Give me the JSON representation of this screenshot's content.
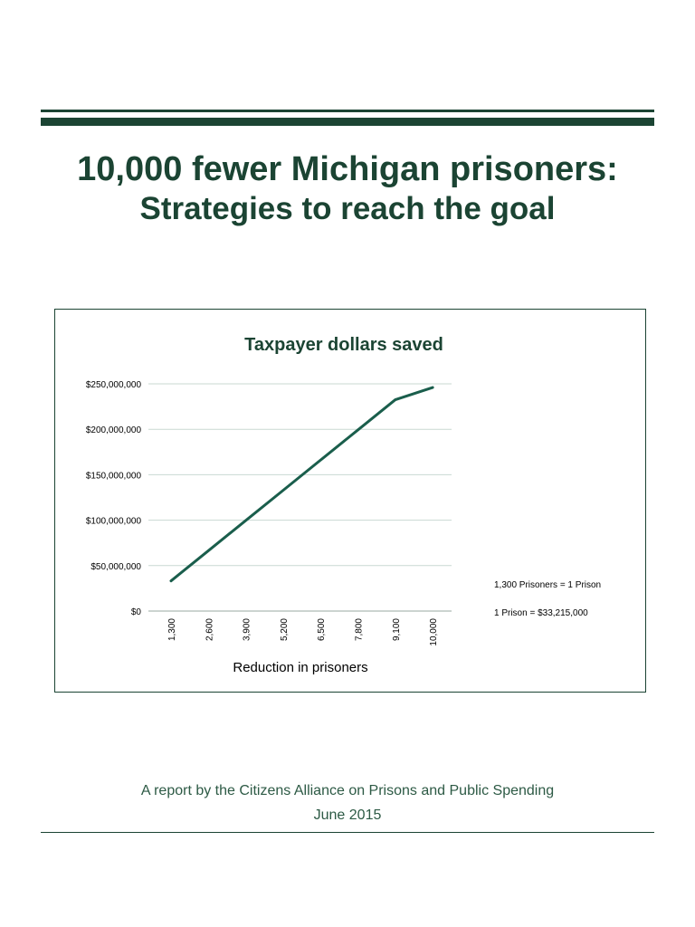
{
  "title": {
    "line1": "10,000 fewer Michigan prisoners:",
    "line2": "Strategies to reach the goal"
  },
  "chart_data": {
    "type": "line",
    "title": "Taxpayer dollars saved",
    "xlabel": "Reduction in prisoners",
    "ylabel": "",
    "x": [
      1300,
      2600,
      3900,
      5200,
      6500,
      7800,
      9100,
      10000
    ],
    "x_tick_labels": [
      "1,300",
      "2,600",
      "3,900",
      "5,200",
      "6,500",
      "7,800",
      "9,100",
      "10,000"
    ],
    "y_tick_labels": [
      "$0",
      "$50,000,000",
      "$100,000,000",
      "$150,000,000",
      "$200,000,000",
      "$250,000,000"
    ],
    "ylim": [
      0,
      250000000
    ],
    "grid": true,
    "line_color": "#1a5e4c",
    "series": [
      {
        "values": [
          33215000,
          66430000,
          99645000,
          132860000,
          166075000,
          199290000,
          232505000,
          246000000
        ]
      }
    ],
    "annotations": [
      "1,300 Prisoners = 1 Prison",
      "1 Prison = $33,215,000"
    ]
  },
  "footer": {
    "report_line": "A report by the Citizens Alliance on Prisons and Public Spending",
    "date": "June 2015"
  },
  "colors": {
    "brand": "#1b4433",
    "chart_line": "#1a5e4c",
    "gridline": "#c9d9d2"
  }
}
